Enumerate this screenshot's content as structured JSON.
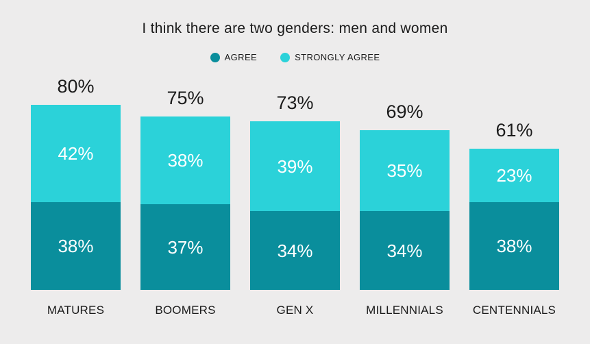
{
  "chart": {
    "title": "I think there are two genders: men and women",
    "legend": [
      {
        "label": "AGREE",
        "color": "#0a8e9c"
      },
      {
        "label": "STRONGLY AGREE",
        "color": "#2bd2d9"
      }
    ]
  },
  "chart_data": {
    "type": "bar",
    "stacked": true,
    "title": "I think there are two genders: men and women",
    "categories": [
      "MATURES",
      "BOOMERS",
      "GEN X",
      "MILLENNIALS",
      "CENTENNIALS"
    ],
    "series": [
      {
        "name": "AGREE",
        "color": "#0a8e9c",
        "values": [
          38,
          37,
          34,
          34,
          38
        ]
      },
      {
        "name": "STRONGLY AGREE",
        "color": "#2bd2d9",
        "values": [
          42,
          38,
          39,
          35,
          23
        ]
      }
    ],
    "totals": [
      80,
      75,
      73,
      69,
      61
    ],
    "value_suffix": "%",
    "xlabel": "",
    "ylabel": "",
    "ylim": [
      0,
      100
    ],
    "grid": false,
    "legend_position": "top",
    "background": "#edecec",
    "text_color": "#1b1b1b",
    "bar_value_text_color": "#ffffff"
  }
}
